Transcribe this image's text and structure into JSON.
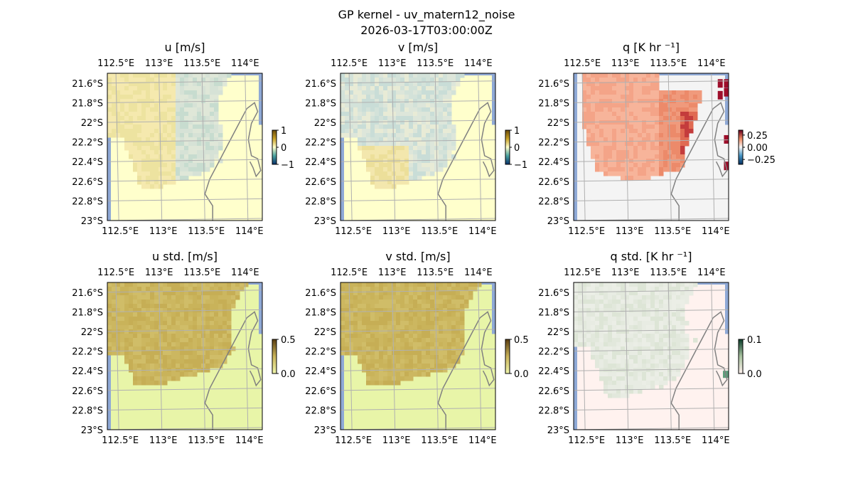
{
  "figure": {
    "title_line1": "GP kernel - uv_matern12_noise",
    "title_line2": "2026-03-17T03:00:00Z"
  },
  "map": {
    "lon_ticks": [
      "112.5°E",
      "113°E",
      "113.5°E",
      "114°E"
    ],
    "lat_ticks": [
      "21.6°S",
      "21.8°S",
      "22°S",
      "22.2°S",
      "22.4°S",
      "22.6°S",
      "22.8°S",
      "23°S"
    ],
    "lon_values": [
      112.5,
      113.0,
      113.5,
      114.0
    ],
    "lat_values": [
      -21.6,
      -21.8,
      -22.0,
      -22.2,
      -22.4,
      -22.6,
      -22.8,
      -23.0
    ],
    "extent": {
      "lon_min": 112.4,
      "lon_max": 114.2,
      "lat_min": -23.0,
      "lat_max": -21.5
    },
    "grid": true,
    "colors": {
      "ocean": "#8fa9d6",
      "coastline": "#808080",
      "gridline": "#b0b0b0"
    }
  },
  "chart_data": [
    {
      "type": "heatmap",
      "name": "u",
      "title": "u [m/s]",
      "colorbar": {
        "ticks": [
          "1",
          "0",
          "−1"
        ],
        "tick_values": [
          1,
          0,
          -1
        ],
        "range": [
          -1,
          1
        ],
        "colors": [
          "#08306b",
          "#4aa3a0",
          "#ffffcc",
          "#c9a227",
          "#6b4b0a"
        ]
      },
      "background_color": "#ffffcc",
      "field_colors": [
        "#f5e9ae",
        "#ede3a0",
        "#e6e7c8",
        "#dfe7d8",
        "#d6e2d6",
        "#c7dccf"
      ]
    },
    {
      "type": "heatmap",
      "name": "v",
      "title": "v [m/s]",
      "colorbar": {
        "ticks": [
          "1",
          "0",
          "−1"
        ],
        "tick_values": [
          1,
          0,
          -1
        ],
        "range": [
          -1,
          1
        ],
        "colors": [
          "#08306b",
          "#4aa3a0",
          "#ffffcc",
          "#c9a227",
          "#6b4b0a"
        ]
      },
      "background_color": "#ffffcc",
      "field_colors": [
        "#e8ebd6",
        "#dde6da",
        "#d3e2d9",
        "#c9ddd7",
        "#f3e7ad",
        "#ecdf9a"
      ]
    },
    {
      "type": "heatmap",
      "name": "q",
      "title": "q [K hr ⁻¹]",
      "colorbar": {
        "ticks": [
          "0.25",
          "0.00",
          "−0.25"
        ],
        "tick_values": [
          0.25,
          0.0,
          -0.25
        ],
        "range": [
          -0.35,
          0.35
        ],
        "colors": [
          "#053061",
          "#4393c3",
          "#f7f7f7",
          "#ef8a62",
          "#67001f"
        ]
      },
      "background_color": "#f4f4f4",
      "field_colors": [
        "#f7b49a",
        "#f4a488",
        "#f09a7c",
        "#ec8a6a",
        "#e06a52",
        "#c43c3c",
        "#a50f2d"
      ]
    },
    {
      "type": "heatmap",
      "name": "u_std",
      "title": "u std. [m/s]",
      "colorbar": {
        "ticks": [
          "0.5",
          "0.0"
        ],
        "tick_values": [
          0.5,
          0.0
        ],
        "range": [
          0,
          0.5
        ],
        "colors": [
          "#f0f6ac",
          "#c9b35a",
          "#5a3d10"
        ]
      },
      "background_color": "#e8f5a8",
      "field_colors": [
        "#c9b35a",
        "#ccb760",
        "#c6ae55",
        "#d0bd68"
      ]
    },
    {
      "type": "heatmap",
      "name": "v_std",
      "title": "v std. [m/s]",
      "colorbar": {
        "ticks": [
          "0.5",
          "0.0"
        ],
        "tick_values": [
          0.5,
          0.0
        ],
        "range": [
          0,
          0.5
        ],
        "colors": [
          "#f0f6ac",
          "#c9b35a",
          "#5a3d10"
        ]
      },
      "background_color": "#e8f5a8",
      "field_colors": [
        "#c9b35a",
        "#ccb760",
        "#c6ae55",
        "#d0bd68"
      ]
    },
    {
      "type": "heatmap",
      "name": "q_std",
      "title": "q std. [K hr ⁻¹]",
      "colorbar": {
        "ticks": [
          "0.1",
          "0.0"
        ],
        "tick_values": [
          0.1,
          0.0
        ],
        "range": [
          0,
          0.1
        ],
        "colors": [
          "#fff1ee",
          "#a9c3a0",
          "#0b3d2a"
        ]
      },
      "background_color": "#fff2ef",
      "field_colors": [
        "#e8ece3",
        "#e2e8dc",
        "#ebeee6",
        "#dde5d6"
      ],
      "highlight_color": "#5f9f7c"
    }
  ]
}
